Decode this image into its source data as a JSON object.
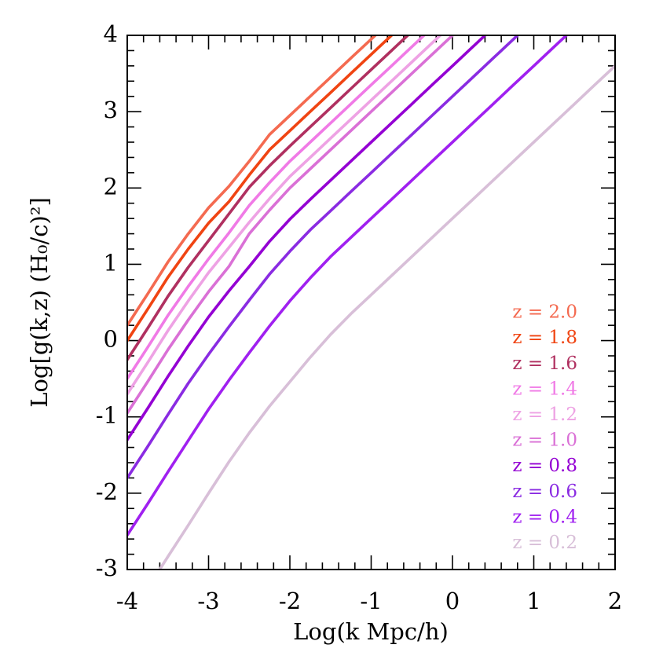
{
  "chart_data": {
    "type": "line",
    "xlabel": "Log(k Mpc/h)",
    "ylabel": "Log[g(k,z) (H₀/c)²]",
    "x": [
      -4,
      -3.75,
      -3.5,
      -3.25,
      -3,
      -2.75,
      -2.5,
      -2.25,
      -2,
      -1.75,
      -1.5,
      -1.25,
      -1,
      -0.75,
      -0.5,
      -0.25,
      0,
      0.25,
      0.5,
      0.75,
      1,
      1.25,
      1.5,
      1.75,
      2
    ],
    "series": [
      {
        "name": "z = 2.0",
        "color": "#f46a50",
        "values": [
          0.2,
          0.61,
          1.03,
          1.4,
          1.74,
          2.02,
          2.35,
          2.7,
          2.95,
          3.2,
          3.45,
          3.7,
          3.95,
          4.2,
          null,
          null,
          null,
          null,
          null,
          null,
          null,
          null,
          null,
          null,
          null
        ]
      },
      {
        "name": "z = 1.8",
        "color": "#f04412",
        "values": [
          0,
          0.41,
          0.83,
          1.2,
          1.54,
          1.82,
          2.17,
          2.5,
          2.75,
          3.0,
          3.25,
          3.5,
          3.75,
          4.0,
          4.25,
          null,
          null,
          null,
          null,
          null,
          null,
          null,
          null,
          null,
          null
        ]
      },
      {
        "name": "z = 1.6",
        "color": "#b03060",
        "values": [
          -0.25,
          0.16,
          0.58,
          0.96,
          1.31,
          1.66,
          2.01,
          2.29,
          2.55,
          2.8,
          3.05,
          3.3,
          3.55,
          3.8,
          4.05,
          null,
          null,
          null,
          null,
          null,
          null,
          null,
          null,
          null,
          null
        ]
      },
      {
        "name": "z = 1.4",
        "color": "#f07ae6",
        "values": [
          -0.5,
          -0.09,
          0.33,
          0.71,
          1.07,
          1.41,
          1.77,
          2.07,
          2.35,
          2.6,
          2.85,
          3.1,
          3.35,
          3.6,
          3.85,
          4.1,
          null,
          null,
          null,
          null,
          null,
          null,
          null,
          null,
          null
        ]
      },
      {
        "name": "z = 1.2",
        "color": "#eea2e4",
        "values": [
          -0.7,
          -0.29,
          0.13,
          0.52,
          0.89,
          1.22,
          1.55,
          1.86,
          2.15,
          2.4,
          2.65,
          2.9,
          3.15,
          3.4,
          3.65,
          3.9,
          4.15,
          null,
          null,
          null,
          null,
          null,
          null,
          null,
          null
        ]
      },
      {
        "name": "z = 1.0",
        "color": "#da70d6",
        "values": [
          -0.95,
          -0.54,
          -0.12,
          0.27,
          0.64,
          0.97,
          1.4,
          1.71,
          2.0,
          2.25,
          2.5,
          2.75,
          3.0,
          3.25,
          3.5,
          3.75,
          4.0,
          4.25,
          null,
          null,
          null,
          null,
          null,
          null,
          null
        ]
      },
      {
        "name": "z = 0.8",
        "color": "#9400d3",
        "values": [
          -1.3,
          -0.89,
          -0.47,
          -0.07,
          0.31,
          0.65,
          0.97,
          1.3,
          1.59,
          1.85,
          2.1,
          2.35,
          2.6,
          2.85,
          3.1,
          3.35,
          3.6,
          3.85,
          4.1,
          null,
          null,
          null,
          null,
          null,
          null
        ]
      },
      {
        "name": "z = 0.6",
        "color": "#8a2be2",
        "values": [
          -1.8,
          -1.39,
          -0.97,
          -0.56,
          -0.18,
          0.18,
          0.53,
          0.87,
          1.17,
          1.45,
          1.7,
          1.95,
          2.2,
          2.45,
          2.7,
          2.95,
          3.2,
          3.45,
          3.7,
          3.95,
          4.2,
          null,
          null,
          null,
          null
        ]
      },
      {
        "name": "z = 0.4",
        "color": "#a020f0",
        "values": [
          -2.55,
          -2.14,
          -1.72,
          -1.31,
          -0.9,
          -0.52,
          -0.16,
          0.19,
          0.52,
          0.82,
          1.1,
          1.35,
          1.6,
          1.85,
          2.1,
          2.35,
          2.6,
          2.85,
          3.1,
          3.35,
          3.6,
          3.85,
          4.1,
          null,
          null
        ]
      },
      {
        "name": "z = 0.2",
        "color": "#d8bfd8",
        "values": [
          null,
          -3.25,
          -2.83,
          -2.42,
          -2.0,
          -1.59,
          -1.21,
          -0.86,
          -0.54,
          -0.22,
          0.08,
          0.35,
          0.6,
          0.85,
          1.1,
          1.35,
          1.6,
          1.85,
          2.1,
          2.35,
          2.6,
          2.85,
          3.1,
          3.35,
          3.6
        ]
      }
    ],
    "xlim": [
      -4,
      2
    ],
    "xticks": [
      -4,
      -3,
      -2,
      -1,
      0,
      1,
      2
    ],
    "ylim": [
      -3,
      4
    ],
    "yticks": [
      -3,
      -2,
      -1,
      0,
      1,
      2,
      3,
      4
    ],
    "minor_divisions": 5,
    "grid": false,
    "legend": "lower right"
  }
}
